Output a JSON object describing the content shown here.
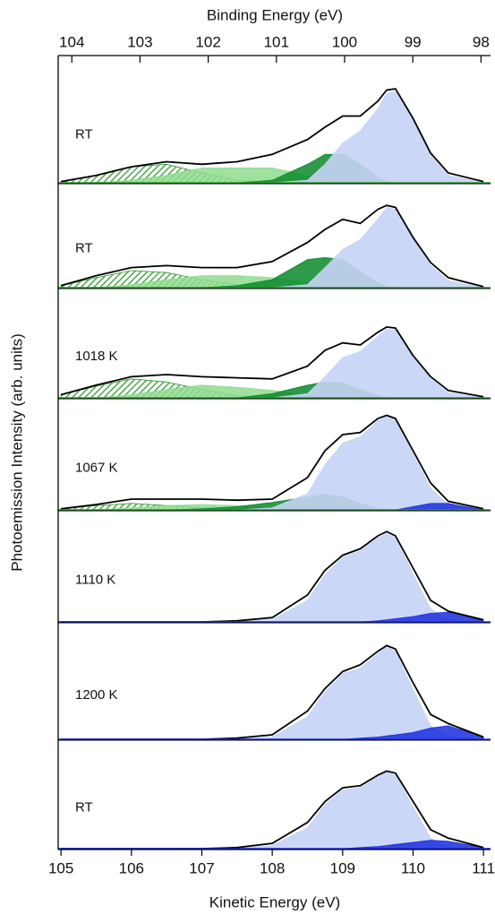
{
  "chart_data": {
    "type": "area",
    "top_axis_label": "Binding Energy (eV)",
    "x_axis_label": "Kinetic Energy (eV)",
    "y_axis_label": "Photoemission Intensity (arb. units)",
    "xlim": [
      104.96,
      111.1
    ],
    "xticks": [
      105,
      106,
      107,
      108,
      109,
      110,
      111
    ],
    "top_xlim": [
      104.2,
      97.86
    ],
    "top_xticks": [
      104,
      103,
      102,
      101,
      100,
      99,
      98
    ],
    "x": [
      105,
      105.5,
      106,
      106.5,
      107,
      107.5,
      108,
      108.5,
      108.75,
      109,
      109.25,
      109.5,
      109.625,
      109.75,
      110,
      110.25,
      110.5,
      111
    ],
    "panels": [
      {
        "label": "RT",
        "ylim": [
          0,
          1
        ],
        "baseline_color": "#2a9a2a",
        "series": [
          {
            "style": "hatched",
            "color": "#2a9a2a",
            "values": [
              0.01,
              0.06,
              0.13,
              0.15,
              0.08,
              0.02,
              0,
              0,
              0,
              0,
              0,
              0,
              0,
              0,
              0,
              0,
              0,
              0
            ]
          },
          {
            "style": "area",
            "color": "#8fdc8f",
            "values": [
              0,
              0,
              0.02,
              0.06,
              0.12,
              0.12,
              0.12,
              0.06,
              0.02,
              0,
              0,
              0,
              0,
              0,
              0,
              0,
              0,
              0
            ]
          },
          {
            "style": "area",
            "color": "#0a8a2a",
            "values": [
              0,
              0,
              0,
              0,
              0,
              0,
              0.02,
              0.15,
              0.23,
              0.23,
              0.15,
              0.04,
              0.01,
              0,
              0,
              0,
              0,
              0
            ]
          },
          {
            "style": "area",
            "color": "#c5d3f5",
            "values": [
              0,
              0,
              0,
              0,
              0,
              0,
              0,
              0.02,
              0.15,
              0.32,
              0.42,
              0.6,
              0.72,
              0.74,
              0.5,
              0.22,
              0.06,
              0
            ]
          },
          {
            "style": "line",
            "color": "#000000",
            "values": [
              0.01,
              0.06,
              0.13,
              0.17,
              0.15,
              0.17,
              0.23,
              0.35,
              0.45,
              0.54,
              0.54,
              0.66,
              0.75,
              0.76,
              0.52,
              0.24,
              0.08,
              0.01
            ]
          }
        ]
      },
      {
        "label": "RT",
        "ylim": [
          0,
          1
        ],
        "baseline_color": "#2a9a2a",
        "series": [
          {
            "style": "hatched",
            "color": "#2a9a2a",
            "values": [
              0.02,
              0.1,
              0.17,
              0.15,
              0.08,
              0.03,
              0,
              0,
              0,
              0,
              0,
              0,
              0,
              0,
              0,
              0,
              0,
              0
            ]
          },
          {
            "style": "area",
            "color": "#8fdc8f",
            "values": [
              0,
              0,
              0.03,
              0.08,
              0.12,
              0.12,
              0.1,
              0.05,
              0.02,
              0,
              0,
              0,
              0,
              0,
              0,
              0,
              0,
              0
            ]
          },
          {
            "style": "area",
            "color": "#0a8a2a",
            "values": [
              0,
              0,
              0,
              0,
              0,
              0.02,
              0.08,
              0.28,
              0.3,
              0.28,
              0.16,
              0.05,
              0.01,
              0,
              0,
              0,
              0,
              0
            ]
          },
          {
            "style": "area",
            "color": "#c5d3f5",
            "values": [
              0,
              0,
              0,
              0,
              0,
              0,
              0,
              0.03,
              0.2,
              0.38,
              0.48,
              0.68,
              0.8,
              0.78,
              0.48,
              0.22,
              0.07,
              0
            ]
          },
          {
            "style": "line",
            "color": "#000000",
            "values": [
              0.02,
              0.12,
              0.2,
              0.22,
              0.2,
              0.2,
              0.26,
              0.45,
              0.58,
              0.68,
              0.64,
              0.78,
              0.82,
              0.8,
              0.5,
              0.25,
              0.1,
              0.01
            ]
          }
        ]
      },
      {
        "label": "1018 K",
        "ylim": [
          0,
          1
        ],
        "baseline_color": "#2a9a2a",
        "series": [
          {
            "style": "hatched",
            "color": "#2a9a2a",
            "values": [
              0.03,
              0.11,
              0.18,
              0.15,
              0.08,
              0.02,
              0,
              0,
              0,
              0,
              0,
              0,
              0,
              0,
              0,
              0,
              0,
              0
            ]
          },
          {
            "style": "area",
            "color": "#8fdc8f",
            "values": [
              0,
              0,
              0.03,
              0.08,
              0.12,
              0.1,
              0.07,
              0.03,
              0,
              0,
              0,
              0,
              0,
              0,
              0,
              0,
              0,
              0
            ]
          },
          {
            "style": "area",
            "color": "#0a8a2a",
            "values": [
              0,
              0,
              0,
              0,
              0,
              0,
              0.04,
              0.12,
              0.15,
              0.14,
              0.08,
              0.02,
              0,
              0,
              0,
              0,
              0,
              0
            ]
          },
          {
            "style": "area",
            "color": "#c5d3f5",
            "values": [
              0,
              0,
              0,
              0,
              0,
              0,
              0,
              0.04,
              0.2,
              0.38,
              0.44,
              0.58,
              0.65,
              0.64,
              0.38,
              0.18,
              0.05,
              0
            ]
          },
          {
            "style": "line",
            "color": "#000000",
            "values": [
              0.03,
              0.12,
              0.2,
              0.22,
              0.2,
              0.19,
              0.18,
              0.3,
              0.45,
              0.52,
              0.5,
              0.62,
              0.67,
              0.66,
              0.4,
              0.2,
              0.07,
              0.01
            ]
          }
        ]
      },
      {
        "label": "1067 K",
        "ylim": [
          0,
          1
        ],
        "baseline_color": "#2a9a2a",
        "series": [
          {
            "style": "hatched",
            "color": "#2a9a2a",
            "values": [
              0.01,
              0.04,
              0.06,
              0.04,
              0.02,
              0,
              0,
              0,
              0,
              0,
              0,
              0,
              0,
              0,
              0,
              0,
              0,
              0
            ]
          },
          {
            "style": "area",
            "color": "#8fdc8f",
            "values": [
              0,
              0,
              0.02,
              0.04,
              0.05,
              0.04,
              0.02,
              0,
              0,
              0,
              0,
              0,
              0,
              0,
              0,
              0,
              0,
              0
            ]
          },
          {
            "style": "area",
            "color": "#0a8a2a",
            "values": [
              0,
              0,
              0,
              0,
              0.01,
              0.03,
              0.07,
              0.12,
              0.14,
              0.12,
              0.06,
              0.01,
              0,
              0,
              0,
              0,
              0,
              0
            ]
          },
          {
            "style": "area",
            "color": "#c5d3f5",
            "values": [
              0,
              0,
              0,
              0,
              0,
              0,
              0.02,
              0.15,
              0.42,
              0.62,
              0.68,
              0.83,
              0.87,
              0.84,
              0.52,
              0.2,
              0.05,
              0
            ]
          },
          {
            "style": "area",
            "color": "#1a2ee0",
            "values": [
              0,
              0,
              0,
              0,
              0,
              0,
              0,
              0,
              0,
              0,
              0,
              0,
              0,
              0,
              0.03,
              0.06,
              0.06,
              0
            ]
          },
          {
            "style": "line",
            "color": "#000000",
            "values": [
              0.01,
              0.05,
              0.1,
              0.1,
              0.1,
              0.09,
              0.1,
              0.3,
              0.55,
              0.7,
              0.72,
              0.85,
              0.88,
              0.85,
              0.55,
              0.25,
              0.08,
              0.01
            ]
          }
        ]
      },
      {
        "label": "1110 K",
        "ylim": [
          0,
          1
        ],
        "baseline_color": "#1a2ee0",
        "series": [
          {
            "style": "area",
            "color": "#c5d3f5",
            "values": [
              0,
              0,
              0,
              0,
              0,
              0,
              0.02,
              0.2,
              0.44,
              0.6,
              0.66,
              0.78,
              0.82,
              0.78,
              0.45,
              0.12,
              0.02,
              0
            ]
          },
          {
            "style": "area",
            "color": "#1a2ee0",
            "values": [
              0,
              0,
              0,
              0,
              0,
              0,
              0,
              0,
              0,
              0,
              0,
              0.01,
              0.02,
              0.03,
              0.05,
              0.08,
              0.09,
              0.01
            ]
          },
          {
            "style": "line",
            "color": "#000000",
            "values": [
              0,
              0,
              0,
              0,
              0,
              0.01,
              0.04,
              0.25,
              0.48,
              0.62,
              0.68,
              0.8,
              0.84,
              0.8,
              0.5,
              0.2,
              0.1,
              0.02
            ]
          }
        ]
      },
      {
        "label": "1200 K",
        "ylim": [
          0,
          1
        ],
        "baseline_color": "#1a2ee0",
        "series": [
          {
            "style": "area",
            "color": "#c5d3f5",
            "values": [
              0,
              0,
              0,
              0,
              0,
              0,
              0.02,
              0.2,
              0.42,
              0.58,
              0.63,
              0.76,
              0.82,
              0.78,
              0.44,
              0.12,
              0.03,
              0
            ]
          },
          {
            "style": "area",
            "color": "#1a2ee0",
            "values": [
              0,
              0,
              0,
              0,
              0,
              0,
              0,
              0,
              0,
              0,
              0.01,
              0.02,
              0.03,
              0.04,
              0.06,
              0.1,
              0.12,
              0.02
            ]
          },
          {
            "style": "line",
            "color": "#000000",
            "values": [
              0,
              0,
              0,
              0,
              0,
              0.01,
              0.04,
              0.25,
              0.45,
              0.6,
              0.66,
              0.78,
              0.83,
              0.8,
              0.5,
              0.22,
              0.14,
              0.02
            ]
          }
        ]
      },
      {
        "label": "RT",
        "ylim": [
          0,
          1
        ],
        "baseline_color": "#1a2ee0",
        "series": [
          {
            "style": "area",
            "color": "#c5d3f5",
            "values": [
              0,
              0,
              0,
              0,
              0,
              0,
              0.03,
              0.2,
              0.42,
              0.56,
              0.58,
              0.68,
              0.73,
              0.7,
              0.4,
              0.1,
              0.02,
              0
            ]
          },
          {
            "style": "area",
            "color": "#1a2ee0",
            "values": [
              0,
              0,
              0,
              0,
              0,
              0,
              0,
              0,
              0,
              0,
              0.01,
              0.02,
              0.03,
              0.04,
              0.06,
              0.08,
              0.07,
              0.01
            ]
          },
          {
            "style": "line",
            "color": "#000000",
            "values": [
              0,
              0,
              0,
              0,
              0,
              0.01,
              0.05,
              0.25,
              0.45,
              0.58,
              0.6,
              0.7,
              0.74,
              0.72,
              0.45,
              0.18,
              0.1,
              0.01
            ]
          }
        ]
      }
    ]
  }
}
